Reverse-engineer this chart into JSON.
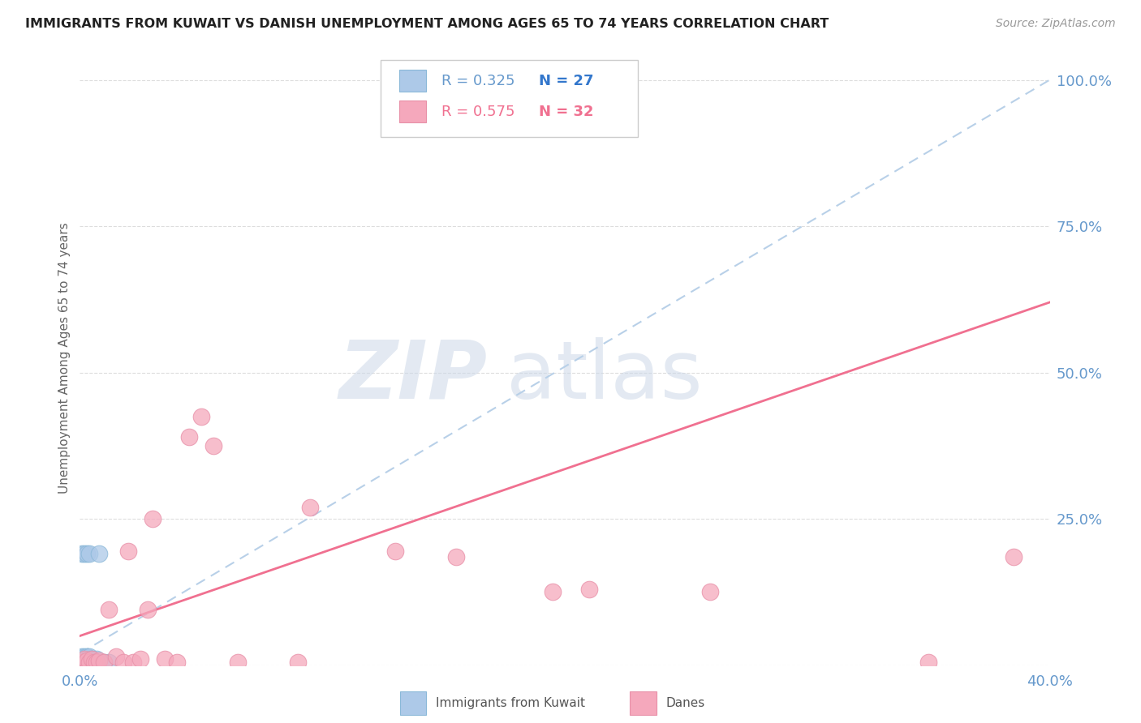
{
  "title": "IMMIGRANTS FROM KUWAIT VS DANISH UNEMPLOYMENT AMONG AGES 65 TO 74 YEARS CORRELATION CHART",
  "source": "Source: ZipAtlas.com",
  "ylabel": "Unemployment Among Ages 65 to 74 years",
  "xlim": [
    0.0,
    0.4
  ],
  "ylim": [
    0.0,
    1.05
  ],
  "x_ticks": [
    0.0,
    0.05,
    0.1,
    0.15,
    0.2,
    0.25,
    0.3,
    0.35,
    0.4
  ],
  "y_ticks_right": [
    0.0,
    0.25,
    0.5,
    0.75,
    1.0
  ],
  "color_blue": "#adc9e8",
  "color_pink": "#f5a8bc",
  "color_blue_line": "#b8d0e8",
  "color_pink_line": "#f07090",
  "color_axis_labels": "#6699cc",
  "kuwait_points_x": [
    0.001,
    0.001,
    0.001,
    0.001,
    0.002,
    0.002,
    0.002,
    0.002,
    0.002,
    0.002,
    0.003,
    0.003,
    0.003,
    0.003,
    0.003,
    0.003,
    0.004,
    0.004,
    0.004,
    0.004,
    0.005,
    0.005,
    0.006,
    0.007,
    0.008,
    0.01,
    0.012
  ],
  "kuwait_points_y": [
    0.005,
    0.01,
    0.015,
    0.19,
    0.005,
    0.008,
    0.01,
    0.013,
    0.015,
    0.19,
    0.005,
    0.008,
    0.01,
    0.013,
    0.015,
    0.19,
    0.005,
    0.008,
    0.015,
    0.19,
    0.005,
    0.01,
    0.005,
    0.01,
    0.19,
    0.005,
    0.005
  ],
  "danes_points_x": [
    0.001,
    0.002,
    0.003,
    0.004,
    0.005,
    0.006,
    0.007,
    0.008,
    0.01,
    0.012,
    0.015,
    0.018,
    0.02,
    0.022,
    0.025,
    0.028,
    0.03,
    0.035,
    0.04,
    0.045,
    0.05,
    0.055,
    0.065,
    0.09,
    0.095,
    0.13,
    0.155,
    0.195,
    0.21,
    0.26,
    0.35,
    0.385
  ],
  "danes_points_y": [
    0.005,
    0.01,
    0.008,
    0.005,
    0.01,
    0.005,
    0.005,
    0.008,
    0.005,
    0.095,
    0.015,
    0.005,
    0.195,
    0.005,
    0.01,
    0.095,
    0.25,
    0.01,
    0.005,
    0.39,
    0.425,
    0.375,
    0.005,
    0.005,
    0.27,
    0.195,
    0.185,
    0.125,
    0.13,
    0.125,
    0.005,
    0.185
  ],
  "kuwait_trendline": [
    0.0,
    0.4,
    0.02,
    1.0
  ],
  "danes_trendline": [
    0.0,
    0.4,
    0.05,
    0.62
  ],
  "background_color": "#ffffff",
  "grid_color": "#dddddd"
}
